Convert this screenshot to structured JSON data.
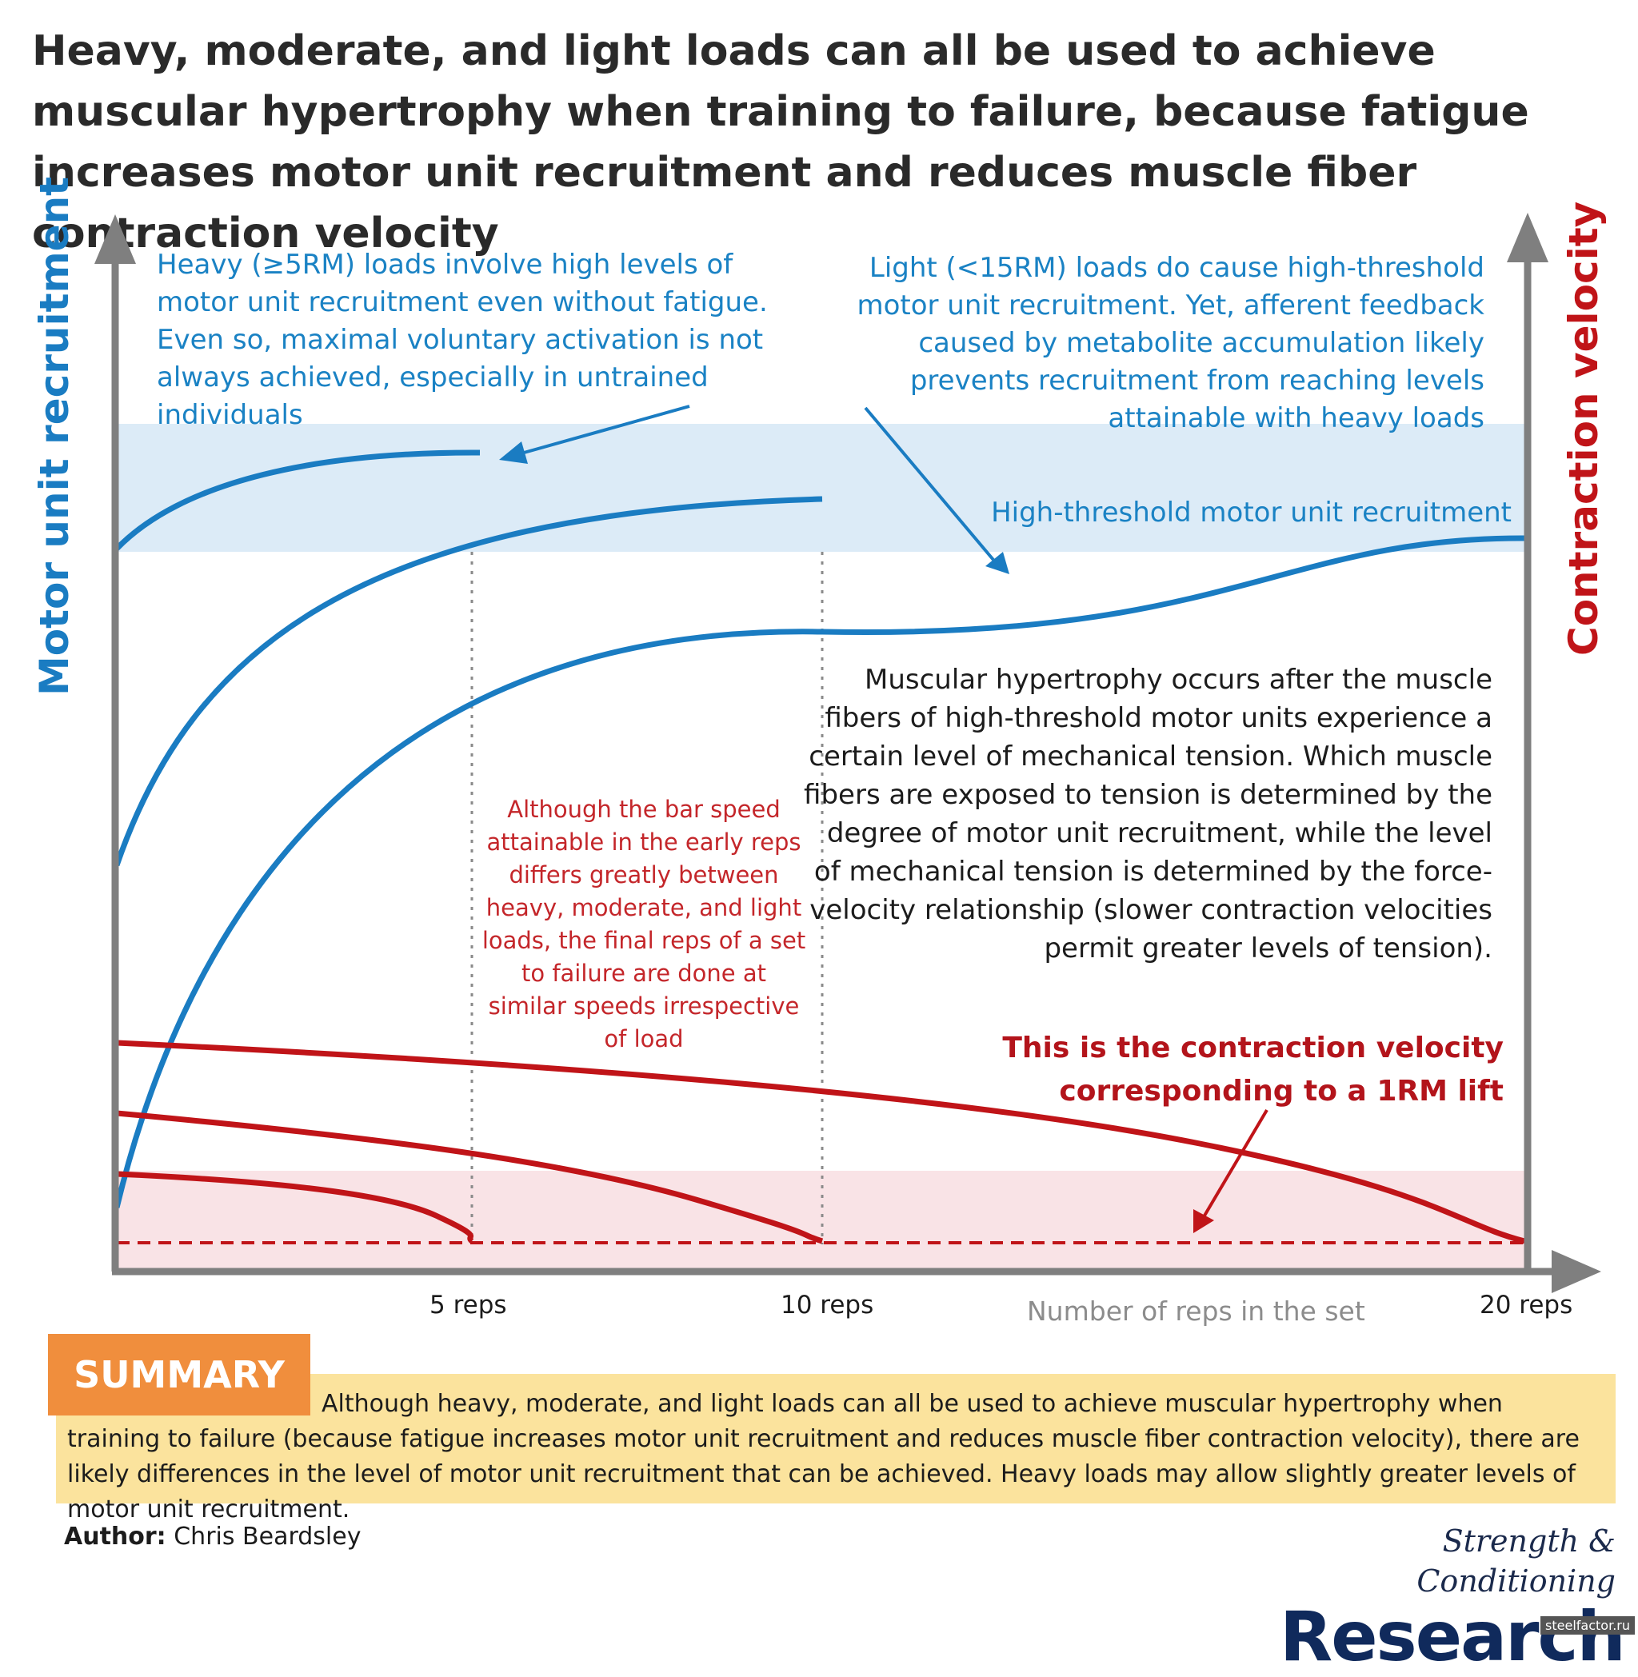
{
  "title": "Heavy, moderate, and light loads can all be used to achieve muscular hypertrophy when training to failure, because fatigue increases motor unit recruitment and reduces muscle fiber contraction velocity",
  "axes": {
    "y_left_label": "Motor unit recruitment",
    "y_right_label": "Contraction velocity",
    "x_label": "Number of reps in the set",
    "x_ticks": [
      "5 reps",
      "10 reps",
      "20 reps"
    ]
  },
  "annotations": {
    "heavy": "Heavy (≥5RM) loads involve high levels of motor unit recruitment even without fatigue. Even so, maximal voluntary activation is not always achieved, especially in untrained individuals",
    "light": "Light (<15RM) loads do cause high-threshold motor unit recruitment. Yet, afferent feedback caused by metabolite accumulation likely prevents recruitment from reaching levels attainable with heavy loads",
    "high_threshold_band": "High-threshold motor unit recruitment",
    "hypertrophy": "Muscular hypertrophy occurs after the muscle fibers of high-threshold motor units experience a certain level of mechanical tension. Which muscle fibers are exposed to tension is determined by the degree of motor unit recruitment, while the level of mechanical tension is determined by the force-velocity relationship (slower contraction velocities permit greater levels of tension).",
    "bar_speed": "Although the bar speed attainable in the early reps differs greatly between heavy, moderate, and light loads, the final reps of a set to failure are done at similar speeds irrespective of load",
    "one_rm": "This is the contraction velocity corresponding to a 1RM lift"
  },
  "summary": {
    "label": "SUMMARY",
    "text": "Although heavy, moderate, and light loads can all be used to achieve muscular hypertrophy when training to failure (because fatigue increases motor unit recruitment and reduces muscle fiber contraction velocity), there are likely differences in the level of motor unit recruitment that can be achieved. Heavy loads may allow slightly greater levels of motor unit recruitment."
  },
  "author": {
    "label": "Author:",
    "name": "Chris Beardsley"
  },
  "logo": {
    "line1": "Strength & Conditioning",
    "line2": "Research"
  },
  "watermark": "steelfactor.ru",
  "colors": {
    "recruitment": "#1a7cc2",
    "velocity": "#c01418",
    "band_blue": "#dcebf7",
    "band_red": "#f9e3e6",
    "axis": "#7f7f7f",
    "summary_bg": "#fbe39d",
    "summary_tab": "#f08e3d"
  }
}
